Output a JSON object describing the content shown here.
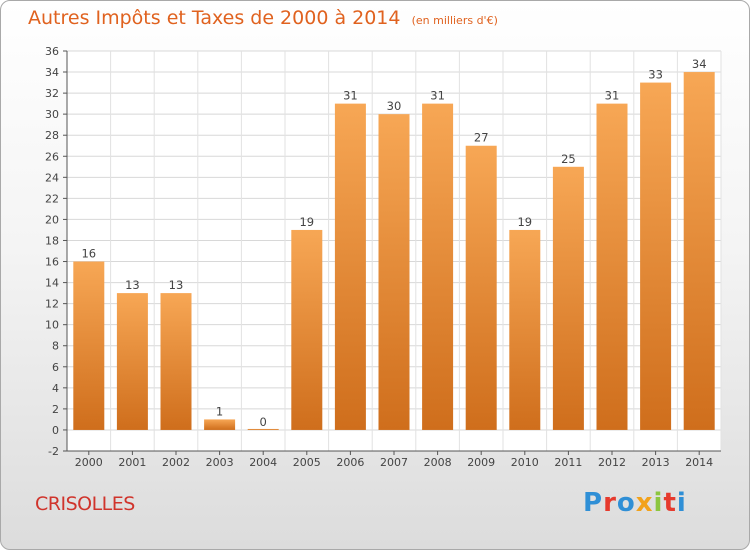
{
  "header": {
    "title": "Autres Impôts et Taxes de 2000 à 2014",
    "subtitle": "(en milliers d'€)"
  },
  "footer": {
    "city": "CRISOLLES",
    "logo_letters": [
      "P",
      "r",
      "o",
      "x",
      "i",
      "t",
      "i"
    ],
    "logo_colors": [
      "#2f8fd6",
      "#e63a2d",
      "#2f8fd6",
      "#f2a21b",
      "#8cc63f",
      "#e63a2d",
      "#2f8fd6"
    ]
  },
  "chart_data": {
    "type": "bar",
    "title": "Autres Impôts et Taxes de 2000 à 2014",
    "subtitle": "(en milliers d'€)",
    "categories": [
      "2000",
      "2001",
      "2002",
      "2003",
      "2004",
      "2005",
      "2006",
      "2007",
      "2008",
      "2009",
      "2010",
      "2011",
      "2012",
      "2013",
      "2014"
    ],
    "values": [
      16,
      13,
      13,
      1,
      0,
      19,
      31,
      30,
      31,
      27,
      19,
      25,
      31,
      33,
      34
    ],
    "ylim": [
      -2,
      36
    ],
    "yticks": [
      -2,
      0,
      2,
      4,
      6,
      8,
      10,
      12,
      14,
      16,
      18,
      20,
      22,
      24,
      26,
      28,
      30,
      32,
      34,
      36
    ],
    "grid": true,
    "bar_color_top": "#f7a755",
    "bar_color_bottom": "#cf6e1c"
  }
}
